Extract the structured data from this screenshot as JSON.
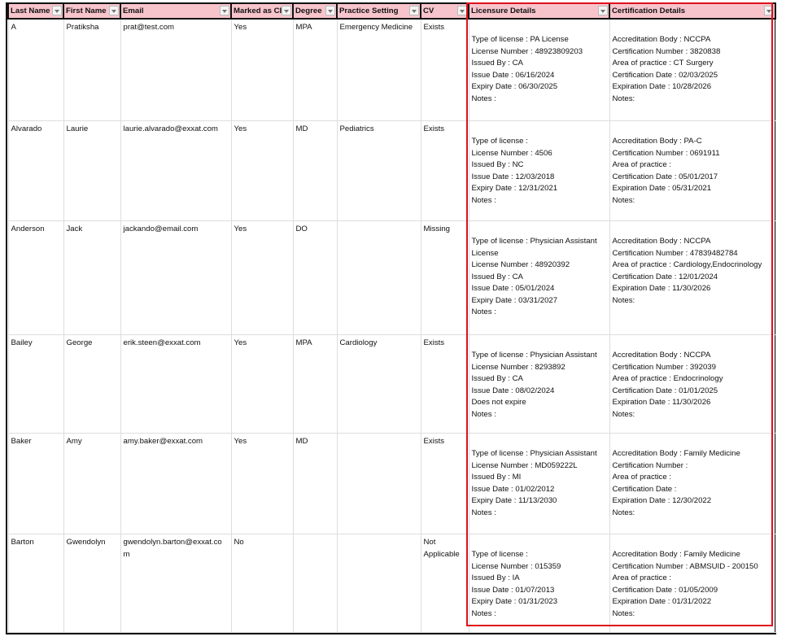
{
  "headers": [
    "Last Name",
    "First Name",
    "Email",
    "Marked as CI",
    "Degree",
    "Practice Setting",
    "CV",
    "Licensure Details",
    "Certification Details"
  ],
  "rows": [
    {
      "last": "A",
      "first": "Pratiksha",
      "email": "prat@test.com",
      "ci": "Yes",
      "degree": "MPA",
      "setting": "Emergency Medicine",
      "cv": "Exists",
      "lic": [
        "Type of license : PA License",
        "License Number : 48923809203",
        "Issued By : CA",
        "Issue Date : 06/16/2024",
        "Expiry Date : 06/30/2025",
        "Notes :"
      ],
      "cert": [
        "Accreditation Body : NCCPA",
        "Certification Number : 3820838",
        "Area of practice : CT Surgery",
        "Certification Date : 02/03/2025",
        "Expiration Date : 10/28/2026",
        "Notes:"
      ]
    },
    {
      "last": "Alvarado",
      "first": "Laurie",
      "email": "laurie.alvarado@exxat.com",
      "ci": "Yes",
      "degree": "MD",
      "setting": "Pediatrics",
      "cv": "Exists",
      "lic": [
        "Type of license :",
        "License Number : 4506",
        "Issued By : NC",
        "Issue Date : 12/03/2018",
        "Expiry Date : 12/31/2021",
        "Notes :"
      ],
      "cert": [
        "Accreditation Body : PA-C",
        "Certification Number : 0691911",
        "Area of practice :",
        "Certification Date : 05/01/2017",
        "Expiration Date : 05/31/2021",
        "Notes:"
      ]
    },
    {
      "last": "Anderson",
      "first": "Jack",
      "email": "jackando@email.com",
      "ci": "Yes",
      "degree": "DO",
      "setting": "",
      "cv": "Missing",
      "lic": [
        "Type of license : Physician Assistant",
        "License",
        "License Number : 48920392",
        "Issued By : CA",
        "Issue Date : 05/01/2024",
        "Expiry Date : 03/31/2027",
        "Notes :"
      ],
      "cert": [
        "Accreditation Body : NCCPA",
        "Certification Number : 47839482784",
        "Area of practice : Cardiology,Endocrinology",
        "Certification Date : 12/01/2024",
        "Expiration Date : 11/30/2026",
        "Notes:"
      ]
    },
    {
      "last": "Bailey",
      "first": "George",
      "email": "erik.steen@exxat.com",
      "ci": "Yes",
      "degree": "MPA",
      "setting": "Cardiology",
      "cv": "Exists",
      "lic": [
        "Type of license : Physician Assistant",
        "License Number : 8293892",
        "Issued By : CA",
        "Issue Date : 08/02/2024",
        "Does not expire",
        "Notes :"
      ],
      "cert": [
        "Accreditation Body : NCCPA",
        "Certification Number : 392039",
        "Area of practice : Endocrinology",
        "Certification Date : 01/01/2025",
        "Expiration Date : 11/30/2026",
        "Notes:"
      ]
    },
    {
      "last": "Baker",
      "first": "Amy",
      "email": "amy.baker@exxat.com",
      "ci": "Yes",
      "degree": "MD",
      "setting": "",
      "cv": "Exists",
      "lic": [
        "Type of license : Physician Assistant",
        "License Number : MD059222L",
        "Issued By : MI",
        "Issue Date : 01/02/2012",
        "Expiry Date : 11/13/2030",
        "Notes :"
      ],
      "cert": [
        "Accreditation Body : Family Medicine",
        "Certification Number :",
        "Area of practice :",
        "Certification Date :",
        "Expiration Date : 12/30/2022",
        "Notes:"
      ]
    },
    {
      "last": "Barton",
      "first": "Gwendolyn",
      "email": "gwendolyn.barton@exxat.co m",
      "ci": "No",
      "degree": "",
      "setting": "",
      "cv": "Not Applicable",
      "lic": [
        "Type of license :",
        "License Number : 015359",
        "Issued By : IA",
        "Issue Date : 01/07/2013",
        "Expiry Date : 01/31/2023",
        "Notes :"
      ],
      "cert": [
        "Accreditation Body : Family Medicine",
        "Certification Number : ABMSUID - 200150",
        "Area of practice :",
        "Certification Date : 01/05/2009",
        "Expiration Date : 01/31/2022",
        "Notes:"
      ]
    }
  ],
  "colors": {
    "header_bg": "#f7c4cc",
    "highlight_border": "#e0101a"
  }
}
